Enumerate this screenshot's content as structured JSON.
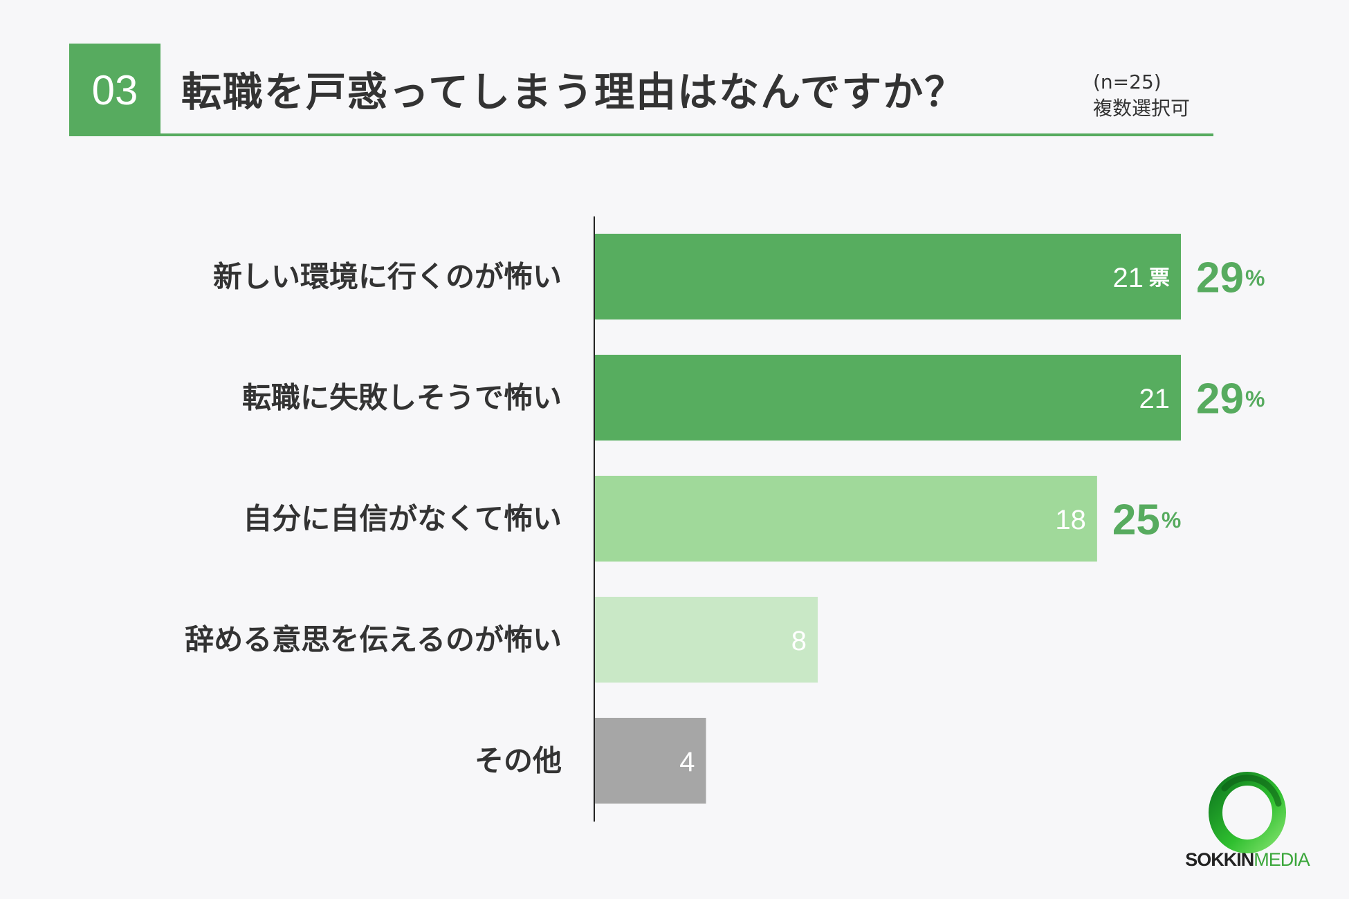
{
  "header": {
    "number": "03",
    "title": "転職を戸惑ってしまう理由はなんですか？",
    "note_n": "(n=25)",
    "note_multi": "複数選択可"
  },
  "chart_data": {
    "type": "bar",
    "orientation": "horizontal",
    "categories": [
      "新しい環境に行くのが怖い",
      "転職に失敗しそうで怖い",
      "自分に自信がなくて怖い",
      "辞める意思を伝えるのが怖い",
      "その他"
    ],
    "values": [
      21,
      21,
      18,
      8,
      4
    ],
    "value_labels": [
      "21",
      "21",
      "18",
      "8",
      "4"
    ],
    "unit_label": "票",
    "percent_labels": [
      "29",
      "29",
      "25",
      "",
      ""
    ],
    "percent_suffix": "%",
    "colors": [
      "#57ad5f",
      "#57ad5f",
      "#a0d99a",
      "#c9e8c6",
      "#a6a6a6"
    ],
    "xlim": [
      0,
      21
    ]
  },
  "logo": {
    "brand_a": "SOKKIN",
    "brand_b": "MEDIA"
  }
}
